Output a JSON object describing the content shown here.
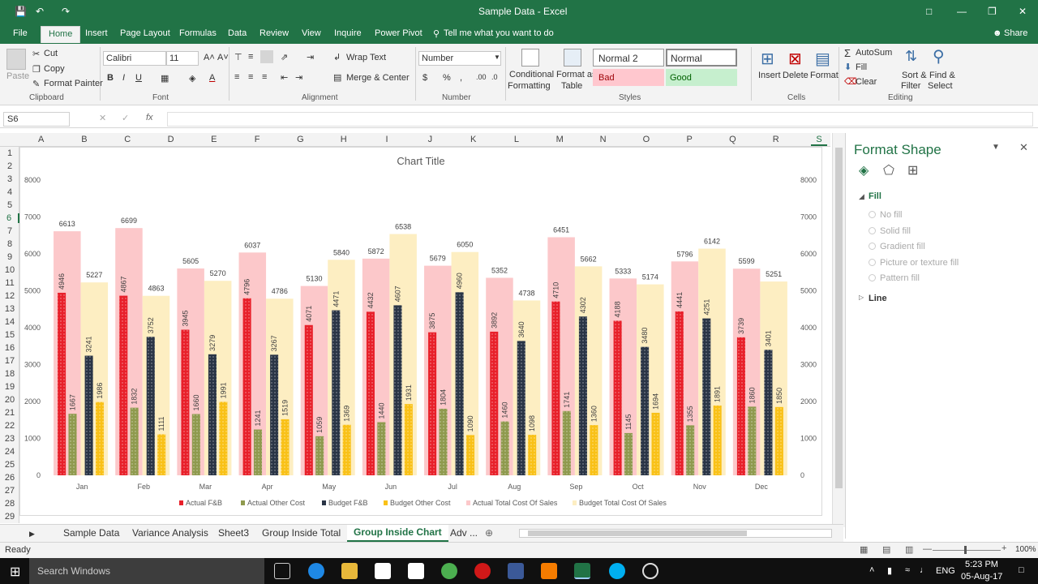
{
  "window": {
    "title": "Sample Data  -  Excel"
  },
  "tabs": [
    "File",
    "Home",
    "Insert",
    "Page Layout",
    "Formulas",
    "Data",
    "Review",
    "View",
    "Inquire",
    "Power Pivot"
  ],
  "tell_me": "Tell me what you want to do",
  "share": "Share",
  "clipboard": {
    "paste": "Paste",
    "cut": "Cut",
    "copy": "Copy",
    "format_painter": "Format Painter",
    "label": "Clipboard"
  },
  "font": {
    "name": "Calibri",
    "size": "11",
    "label": "Font",
    "bold": "B",
    "italic": "I",
    "underline": "U"
  },
  "alignment": {
    "wrap": "Wrap Text",
    "merge": "Merge & Center",
    "label": "Alignment"
  },
  "number": {
    "format": "Number",
    "label": "Number",
    "currency": "$",
    "percent": "%",
    "comma": ","
  },
  "styles": {
    "conditional": "Conditional",
    "formatting": "Formatting",
    "format_as": "Format as",
    "table": "Table",
    "normal2": "Normal 2",
    "normal": "Normal",
    "bad": "Bad",
    "good": "Good",
    "label": "Styles"
  },
  "cells": {
    "insert": "Insert",
    "delete": "Delete",
    "format": "Format",
    "label": "Cells"
  },
  "editing": {
    "autosum": "AutoSum",
    "fill": "Fill",
    "clear": "Clear",
    "sort": "Sort &",
    "filter": "Filter",
    "find": "Find &",
    "select": "Select",
    "label": "Editing"
  },
  "namebox": "S6",
  "fx": "fx",
  "columns": [
    "A",
    "B",
    "C",
    "D",
    "E",
    "F",
    "G",
    "H",
    "I",
    "J",
    "K",
    "L",
    "M",
    "N",
    "O",
    "P",
    "Q",
    "R",
    "S"
  ],
  "rows": [
    "1",
    "2",
    "3",
    "4",
    "5",
    "6",
    "7",
    "8",
    "9",
    "10",
    "11",
    "12",
    "13",
    "14",
    "15",
    "16",
    "17",
    "18",
    "19",
    "20",
    "21",
    "22",
    "23",
    "24",
    "25",
    "26",
    "27",
    "28",
    "29"
  ],
  "chart_data": {
    "type": "bar",
    "title": "Chart Title",
    "categories": [
      "Jan",
      "Feb",
      "Mar",
      "Apr",
      "May",
      "Jun",
      "Jul",
      "Aug",
      "Sep",
      "Oct",
      "Nov",
      "Dec"
    ],
    "ylim": [
      0,
      8000
    ],
    "yticks": [
      "0",
      "1000",
      "2000",
      "3000",
      "4000",
      "5000",
      "6000",
      "7000",
      "8000"
    ],
    "series": [
      {
        "name": "Actual  F&B",
        "color": "#e8202a",
        "values": [
          4946,
          4867,
          3945,
          4796,
          4071,
          4432,
          3875,
          3892,
          4710,
          4188,
          4441,
          3739
        ]
      },
      {
        "name": "Actual  Other Cost",
        "color": "#8f9a4e",
        "values": [
          1667,
          1832,
          1660,
          1241,
          1059,
          1440,
          1804,
          1460,
          1741,
          1145,
          1355,
          1860
        ]
      },
      {
        "name": "Budget F&B",
        "color": "#2a3546",
        "values": [
          3241,
          3752,
          3279,
          3267,
          4471,
          4607,
          4960,
          3640,
          4302,
          3480,
          4251,
          3401
        ]
      },
      {
        "name": "Budget Other Cost",
        "color": "#f9c117",
        "values": [
          1986,
          1111,
          1991,
          1519,
          1369,
          1931,
          1090,
          1098,
          1360,
          1694,
          1891,
          1850
        ]
      },
      {
        "name": "Actual  Total Cost Of Sales",
        "color": "#fcc8ca",
        "values": [
          6613,
          6699,
          5605,
          6037,
          5130,
          5872,
          5679,
          5352,
          6451,
          5333,
          5796,
          5599
        ]
      },
      {
        "name": "Budget Total Cost Of Sales",
        "color": "#fdeec2",
        "values": [
          5227,
          4863,
          5270,
          4786,
          5840,
          6538,
          6050,
          4738,
          5662,
          5174,
          6142,
          5251
        ]
      }
    ]
  },
  "format_pane": {
    "title": "Format Shape",
    "fill": "Fill",
    "options": [
      "No fill",
      "Solid fill",
      "Gradient fill",
      "Picture or texture fill",
      "Pattern fill"
    ],
    "line": "Line"
  },
  "sheets": [
    "Sample Data",
    "Variance Analysis",
    "Sheet3",
    "Group Inside Total",
    "Group Inside Chart",
    "Adv ..."
  ],
  "status": {
    "ready": "Ready",
    "zoom": "100%"
  },
  "taskbar": {
    "search": "Search Windows",
    "lang": "ENG",
    "time": "5:23 PM",
    "date": "05-Aug-17"
  }
}
